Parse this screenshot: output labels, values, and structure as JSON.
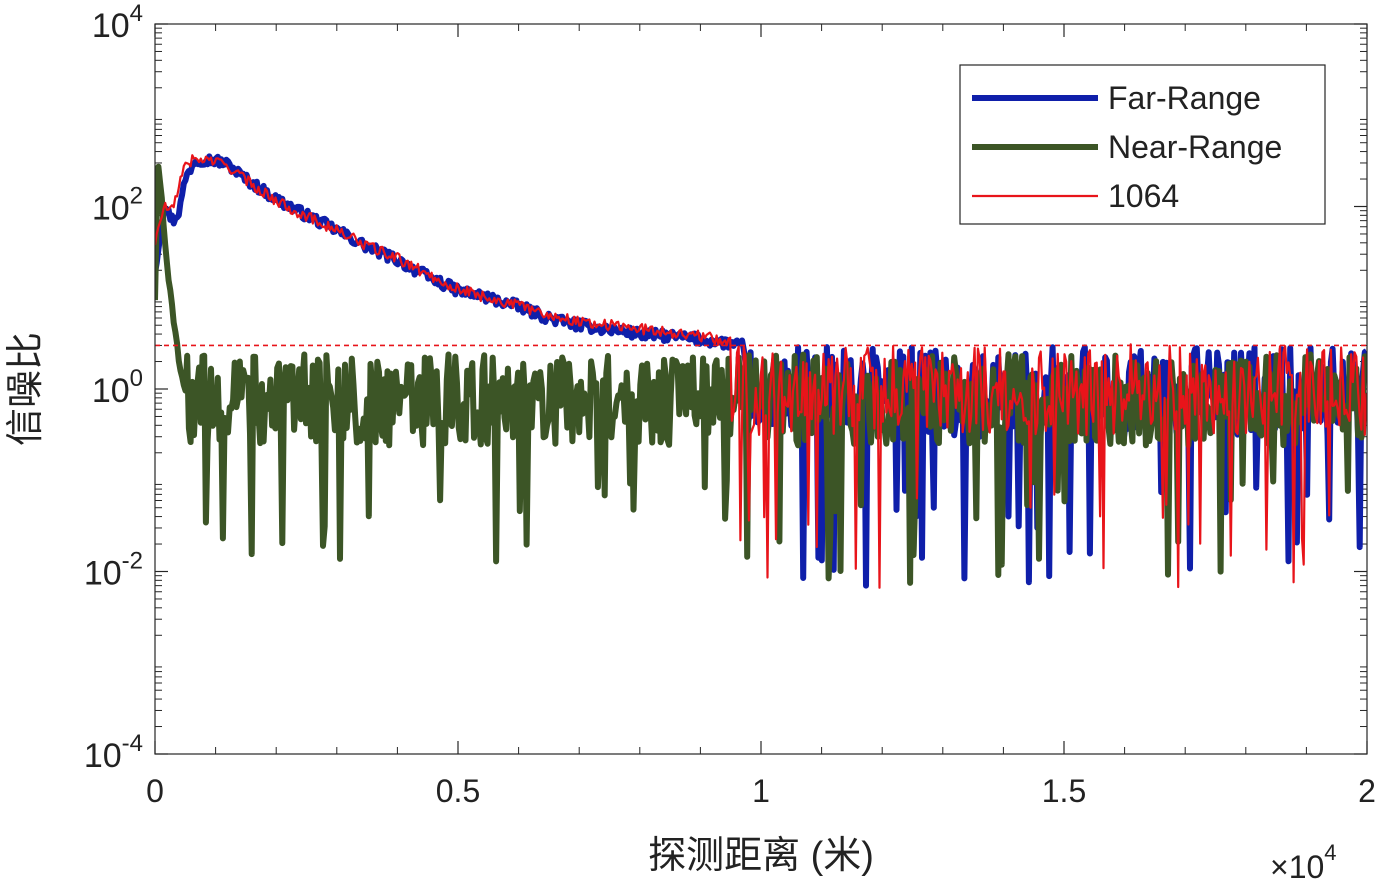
{
  "chart_data": {
    "type": "line",
    "title": "",
    "xlabel": "探测距离 (米)",
    "ylabel": "信噪比",
    "x_exponent_label": "×10",
    "x_exponent_power": "4",
    "xlim": [
      0,
      20000
    ],
    "ylim": [
      0.0001,
      10000
    ],
    "yscale": "log",
    "x_ticks": [
      0,
      5000,
      10000,
      15000,
      20000
    ],
    "x_tick_labels": [
      "0",
      "0.5",
      "1",
      "1.5",
      "2"
    ],
    "y_ticks": [
      0.0001,
      0.01,
      1,
      100,
      10000
    ],
    "y_tick_base": [
      "10",
      "10",
      "10",
      "10",
      "10"
    ],
    "y_tick_powers": [
      "-4",
      "-2",
      "0",
      "2",
      "4"
    ],
    "grid": false,
    "legend_position": "top-right",
    "threshold": {
      "value": 3,
      "color": "#e8141a",
      "style": "dashed"
    },
    "series": [
      {
        "name": "Far-Range",
        "color": "#0f1faa",
        "width": 6,
        "noise_floor": 1.2,
        "points": [
          [
            0,
            20
          ],
          [
            150,
            100
          ],
          [
            300,
            70
          ],
          [
            400,
            90
          ],
          [
            500,
            200
          ],
          [
            650,
            320
          ],
          [
            800,
            330
          ],
          [
            1000,
            320
          ],
          [
            1200,
            290
          ],
          [
            1500,
            200
          ],
          [
            2000,
            120
          ],
          [
            2500,
            80
          ],
          [
            3000,
            55
          ],
          [
            3500,
            36
          ],
          [
            4000,
            26
          ],
          [
            4500,
            17
          ],
          [
            5000,
            12
          ],
          [
            5500,
            10
          ],
          [
            6000,
            8
          ],
          [
            6500,
            6
          ],
          [
            7000,
            5
          ],
          [
            7500,
            4.5
          ],
          [
            8000,
            4
          ],
          [
            8500,
            3.8
          ],
          [
            9000,
            3.5
          ],
          [
            9400,
            3.2
          ],
          [
            9700,
            3
          ]
        ]
      },
      {
        "name": "Near-Range",
        "color": "#3c5526",
        "width": 6,
        "noise_floor": 1.0,
        "points": [
          [
            0,
            10
          ],
          [
            50,
            300
          ],
          [
            100,
            150
          ],
          [
            200,
            20
          ],
          [
            300,
            6
          ],
          [
            400,
            2
          ],
          [
            500,
            1
          ]
        ]
      },
      {
        "name": "1064",
        "color": "#e8141a",
        "width": 2.2,
        "noise_floor": 1.3,
        "points": [
          [
            0,
            40
          ],
          [
            150,
            100
          ],
          [
            300,
            90
          ],
          [
            450,
            250
          ],
          [
            600,
            320
          ],
          [
            800,
            330
          ],
          [
            1000,
            310
          ],
          [
            1200,
            280
          ],
          [
            1500,
            195
          ],
          [
            2000,
            115
          ],
          [
            2500,
            78
          ],
          [
            3000,
            55
          ],
          [
            3500,
            37
          ],
          [
            4000,
            27
          ],
          [
            4500,
            18
          ],
          [
            5000,
            12.5
          ],
          [
            5500,
            10
          ],
          [
            6000,
            8.2
          ],
          [
            6500,
            6.5
          ],
          [
            7000,
            5.5
          ],
          [
            7500,
            5
          ],
          [
            8000,
            4.6
          ],
          [
            8500,
            4.2
          ],
          [
            9000,
            3.8
          ],
          [
            9300,
            3.5
          ],
          [
            9500,
            3.2
          ]
        ]
      }
    ]
  }
}
